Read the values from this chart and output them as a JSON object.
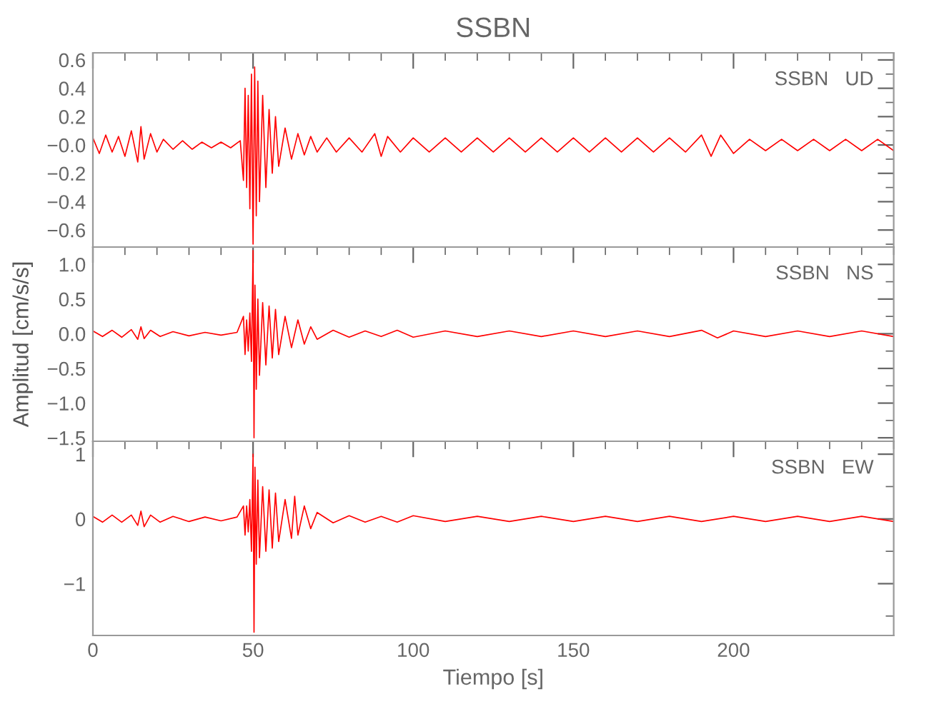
{
  "chart_data": [
    {
      "type": "line",
      "title": "SSBN",
      "annotations": [
        "SSBN   UD"
      ],
      "xlim": [
        0,
        250
      ],
      "xticks": [
        0,
        50,
        100,
        150,
        200
      ],
      "tick_labels": "y",
      "ylim": [
        -0.72,
        0.65
      ],
      "yticks": [
        {
          "value": 0.6,
          "label": "0.6"
        },
        {
          "value": 0.4,
          "label": "0.4"
        },
        {
          "value": 0.2,
          "label": "0.2"
        },
        {
          "value": 0,
          "label": "−0.0"
        },
        {
          "value": -0.2,
          "label": "−0.2"
        },
        {
          "value": -0.4,
          "label": "−0.4"
        },
        {
          "value": -0.6,
          "label": "−0.6"
        }
      ],
      "x": [
        0,
        2,
        4,
        6,
        8,
        10,
        12,
        14,
        15,
        16,
        18,
        20,
        22,
        25,
        28,
        31,
        34,
        37,
        40,
        43,
        46,
        47,
        47.5,
        48,
        48.5,
        49,
        49.5,
        50,
        50.5,
        51,
        51.5,
        52,
        53,
        54,
        55,
        56,
        57,
        58,
        60,
        62,
        64,
        66,
        68,
        70,
        73,
        76,
        80,
        84,
        88,
        90,
        92,
        96,
        100,
        105,
        110,
        115,
        120,
        125,
        130,
        135,
        140,
        145,
        150,
        155,
        160,
        165,
        170,
        175,
        180,
        185,
        190,
        193,
        196,
        200,
        205,
        210,
        215,
        220,
        225,
        230,
        235,
        240,
        245,
        250
      ],
      "series": [
        {
          "color": "#ff0000",
          "values": [
            0.05,
            -0.06,
            0.07,
            -0.05,
            0.06,
            -0.08,
            0.1,
            -0.12,
            0.13,
            -0.1,
            0.08,
            -0.05,
            0.04,
            -0.03,
            0.03,
            -0.03,
            0.02,
            -0.02,
            0.02,
            -0.02,
            0.03,
            -0.25,
            0.4,
            -0.3,
            0.35,
            -0.45,
            0.5,
            -0.7,
            0.55,
            -0.5,
            0.45,
            -0.4,
            0.35,
            -0.3,
            0.25,
            -0.2,
            0.2,
            -0.15,
            0.12,
            -0.1,
            0.08,
            -0.07,
            0.06,
            -0.05,
            0.05,
            -0.05,
            0.05,
            -0.05,
            0.08,
            -0.08,
            0.06,
            -0.05,
            0.05,
            -0.05,
            0.05,
            -0.05,
            0.05,
            -0.05,
            0.05,
            -0.05,
            0.05,
            -0.05,
            0.05,
            -0.05,
            0.05,
            -0.05,
            0.05,
            -0.05,
            0.05,
            -0.05,
            0.07,
            -0.08,
            0.07,
            -0.06,
            0.04,
            -0.04,
            0.04,
            -0.04,
            0.04,
            -0.04,
            0.04,
            -0.04,
            0.04,
            -0.04
          ]
        }
      ]
    },
    {
      "type": "line",
      "ylabel": "Amplitud [cm/s/s]",
      "annotations": [
        "SSBN   NS"
      ],
      "xlim": [
        0,
        250
      ],
      "xticks": [
        0,
        50,
        100,
        150,
        200
      ],
      "tick_labels": "y",
      "ylim": [
        -1.55,
        1.25
      ],
      "yticks": [
        {
          "value": 1,
          "label": "1.0"
        },
        {
          "value": 0.5,
          "label": "0.5"
        },
        {
          "value": 0,
          "label": "0.0"
        },
        {
          "value": -0.5,
          "label": "−0.5"
        },
        {
          "value": -1,
          "label": "−1.0"
        },
        {
          "value": -1.5,
          "label": "−1.5"
        }
      ],
      "x": [
        0,
        3,
        6,
        9,
        12,
        14,
        15,
        16,
        18,
        21,
        25,
        30,
        35,
        40,
        45,
        47,
        47.5,
        48,
        48.5,
        49,
        49.5,
        50,
        50.3,
        50.6,
        51,
        51.5,
        52,
        53,
        54,
        55,
        56,
        57,
        58,
        60,
        62,
        64,
        66,
        68,
        70,
        75,
        80,
        85,
        90,
        95,
        100,
        110,
        120,
        130,
        140,
        150,
        160,
        170,
        180,
        190,
        195,
        200,
        210,
        220,
        230,
        240,
        250
      ],
      "series": [
        {
          "color": "#ff0000",
          "values": [
            0.04,
            -0.04,
            0.05,
            -0.05,
            0.06,
            -0.08,
            0.1,
            -0.07,
            0.05,
            -0.04,
            0.03,
            -0.03,
            0.02,
            -0.02,
            0.02,
            0.25,
            -0.3,
            0.2,
            -0.25,
            0.3,
            -0.4,
            1.2,
            -1.5,
            0.7,
            -0.8,
            0.5,
            -0.6,
            0.45,
            -0.45,
            0.4,
            -0.35,
            0.35,
            -0.3,
            0.25,
            -0.2,
            0.2,
            -0.15,
            0.1,
            -0.08,
            0.05,
            -0.05,
            0.04,
            -0.04,
            0.05,
            -0.05,
            0.04,
            -0.04,
            0.04,
            -0.04,
            0.04,
            -0.04,
            0.04,
            -0.04,
            0.05,
            -0.06,
            0.04,
            -0.04,
            0.04,
            -0.04,
            0.04,
            -0.04
          ]
        }
      ]
    },
    {
      "type": "line",
      "xlabel": "Tiempo [s]",
      "annotations": [
        "SSBN   EW"
      ],
      "xlim": [
        0,
        250
      ],
      "xticks": [
        0,
        50,
        100,
        150,
        200
      ],
      "ylim": [
        -1.8,
        1.2
      ],
      "yticks": [
        1,
        0,
        {
          "value": -1,
          "label": "−1"
        }
      ],
      "x": [
        0,
        3,
        6,
        9,
        12,
        14,
        15,
        16,
        18,
        21,
        25,
        30,
        35,
        40,
        45,
        47,
        47.5,
        48,
        48.5,
        49,
        49.5,
        50,
        50.3,
        50.6,
        51,
        51.5,
        52,
        53,
        54,
        55,
        56,
        57,
        58,
        60,
        62,
        63,
        64,
        66,
        68,
        70,
        75,
        80,
        85,
        90,
        95,
        100,
        110,
        120,
        130,
        140,
        150,
        160,
        170,
        180,
        190,
        200,
        210,
        220,
        230,
        240,
        250
      ],
      "series": [
        {
          "color": "#ff0000",
          "values": [
            0.04,
            -0.05,
            0.06,
            -0.05,
            0.06,
            -0.1,
            0.12,
            -0.12,
            0.06,
            -0.05,
            0.04,
            -0.04,
            0.03,
            -0.03,
            0.03,
            0.2,
            -0.25,
            0.2,
            -0.2,
            0.3,
            -0.5,
            1.0,
            -1.75,
            0.8,
            -0.7,
            0.6,
            -0.6,
            0.5,
            -0.5,
            0.45,
            -0.45,
            0.4,
            -0.35,
            0.3,
            -0.3,
            0.35,
            -0.25,
            0.2,
            -0.15,
            0.1,
            -0.06,
            0.05,
            -0.05,
            0.04,
            -0.05,
            0.05,
            -0.04,
            0.04,
            -0.04,
            0.04,
            -0.04,
            0.04,
            -0.04,
            0.04,
            -0.04,
            0.04,
            -0.04,
            0.04,
            -0.04,
            0.04,
            -0.04
          ]
        }
      ]
    }
  ]
}
